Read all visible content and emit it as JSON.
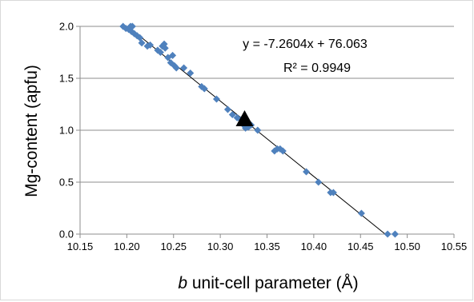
{
  "chart_data": {
    "type": "scatter",
    "title": "",
    "xlabel_italic": "b",
    "xlabel_rest": " unit-cell parameter (Å)",
    "ylabel": "Mg-content (apfu)",
    "xlim": [
      10.15,
      10.55
    ],
    "ylim": [
      0.0,
      2.0
    ],
    "x_ticks": [
      "10.15",
      "10.20",
      "10.25",
      "10.30",
      "10.35",
      "10.40",
      "10.45",
      "10.50",
      "10.55"
    ],
    "y_ticks": [
      "0.0",
      "0.5",
      "1.0",
      "1.5",
      "2.0"
    ],
    "grid": "horizontal",
    "equation_text": "y = -7.2604x + 76.063",
    "r2_text": "R² = 0.9949",
    "trendline": {
      "slope": -7.2604,
      "intercept": 76.063
    },
    "series": [
      {
        "marker": "diamond",
        "color": "#4f81bd",
        "points": [
          [
            10.196,
            2.0
          ],
          [
            10.199,
            1.98
          ],
          [
            10.202,
            1.97
          ],
          [
            10.204,
            2.0
          ],
          [
            10.206,
            2.0
          ],
          [
            10.205,
            1.95
          ],
          [
            10.208,
            1.93
          ],
          [
            10.211,
            1.91
          ],
          [
            10.214,
            1.89
          ],
          [
            10.216,
            1.84
          ],
          [
            10.222,
            1.81
          ],
          [
            10.225,
            1.82
          ],
          [
            10.233,
            1.77
          ],
          [
            10.236,
            1.75
          ],
          [
            10.238,
            1.81
          ],
          [
            10.24,
            1.83
          ],
          [
            10.241,
            1.79
          ],
          [
            10.244,
            1.7
          ],
          [
            10.247,
            1.65
          ],
          [
            10.249,
            1.72
          ],
          [
            10.251,
            1.62
          ],
          [
            10.253,
            1.6
          ],
          [
            10.261,
            1.6
          ],
          [
            10.268,
            1.55
          ],
          [
            10.28,
            1.42
          ],
          [
            10.283,
            1.4
          ],
          [
            10.296,
            1.3
          ],
          [
            10.308,
            1.2
          ],
          [
            10.313,
            1.15
          ],
          [
            10.318,
            1.12
          ],
          [
            10.322,
            1.1
          ],
          [
            10.325,
            1.05
          ],
          [
            10.327,
            1.02
          ],
          [
            10.33,
            1.03
          ],
          [
            10.333,
            1.05
          ],
          [
            10.34,
            1.0
          ],
          [
            10.358,
            0.8
          ],
          [
            10.361,
            0.82
          ],
          [
            10.364,
            0.82
          ],
          [
            10.367,
            0.8
          ],
          [
            10.392,
            0.6
          ],
          [
            10.405,
            0.5
          ],
          [
            10.418,
            0.4
          ],
          [
            10.421,
            0.4
          ],
          [
            10.451,
            0.2
          ],
          [
            10.479,
            0.0
          ],
          [
            10.487,
            0.0
          ]
        ]
      },
      {
        "marker": "triangle",
        "color": "#000000",
        "points": [
          [
            10.326,
            1.1
          ]
        ]
      }
    ]
  }
}
